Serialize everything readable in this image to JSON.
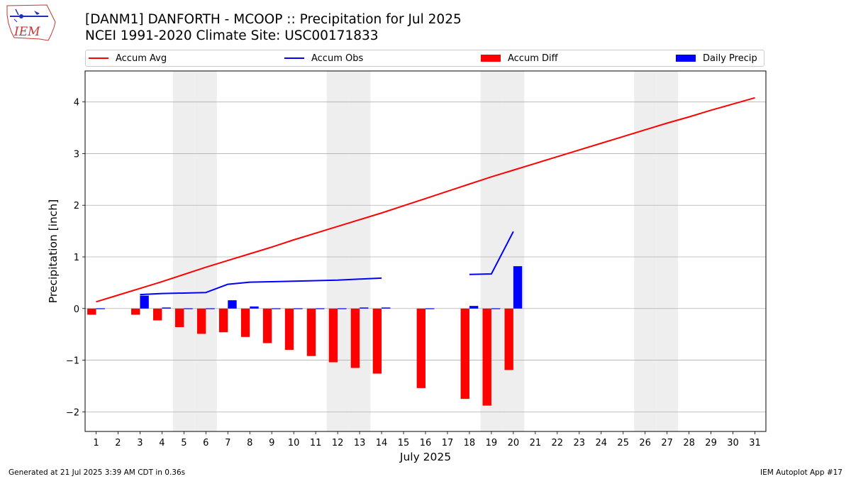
{
  "title_line1": "[DANM1] DANFORTH - MCOOP :: Precipitation for Jul 2025",
  "title_line2": "NCEI 1991-2020 Climate Site: USC00171833",
  "logo_text": "IEM",
  "footer_left": "Generated at 21 Jul 2025 3:39 AM CDT in 0.36s",
  "footer_right": "IEM Autoplot App #17",
  "colors": {
    "avg": "#ff0000",
    "obs": "#0000ff",
    "diff": "#ff0000",
    "daily": "#0000ff",
    "weekend": "#eeeeee",
    "grid": "#b0b0b0"
  },
  "legend": [
    {
      "label": "Accum Avg",
      "kind": "line",
      "color": "#ff0000"
    },
    {
      "label": "Accum Obs",
      "kind": "line",
      "color": "#0000ff"
    },
    {
      "label": "Accum Diff",
      "kind": "box",
      "color": "#ff0000"
    },
    {
      "label": "Daily Precip",
      "kind": "box",
      "color": "#0000ff"
    }
  ],
  "chart_data": {
    "type": "bar",
    "title": "[DANM1] DANFORTH - MCOOP :: Precipitation for Jul 2025",
    "xlabel": "July 2025",
    "ylabel": "Precipitation [inch]",
    "xlim": [
      0.5,
      31.5
    ],
    "ylim": [
      -2.38,
      4.6
    ],
    "yticks": [
      -2,
      -1,
      0,
      1,
      2,
      3,
      4
    ],
    "ytick_labels": [
      "−2",
      "−1",
      "0",
      "1",
      "2",
      "3",
      "4"
    ],
    "categories": [
      "1",
      "2",
      "3",
      "4",
      "5",
      "6",
      "7",
      "8",
      "9",
      "10",
      "11",
      "12",
      "13",
      "14",
      "15",
      "16",
      "17",
      "18",
      "19",
      "20",
      "21",
      "22",
      "23",
      "24",
      "25",
      "26",
      "27",
      "28",
      "29",
      "30",
      "31"
    ],
    "weekend_days": [
      5,
      6,
      12,
      13,
      19,
      20,
      26,
      27
    ],
    "grid": true,
    "series": [
      {
        "name": "Accum Avg",
        "kind": "line",
        "x": [
          1,
          2,
          3,
          4,
          5,
          6,
          7,
          8,
          9,
          10,
          11,
          12,
          13,
          14,
          15,
          16,
          17,
          18,
          19,
          20,
          21,
          22,
          23,
          24,
          25,
          26,
          27,
          28,
          29,
          30,
          31
        ],
        "values": [
          0.13,
          0.26,
          0.39,
          0.52,
          0.66,
          0.8,
          0.93,
          1.06,
          1.19,
          1.33,
          1.46,
          1.59,
          1.72,
          1.85,
          1.99,
          2.13,
          2.27,
          2.41,
          2.55,
          2.68,
          2.81,
          2.94,
          3.07,
          3.2,
          3.33,
          3.46,
          3.59,
          3.71,
          3.84,
          3.96,
          4.08
        ]
      },
      {
        "name": "Accum Obs",
        "kind": "line",
        "segments": [
          {
            "x": [
              3,
              4,
              5,
              6,
              7,
              8,
              9,
              10,
              11,
              12,
              13,
              14
            ],
            "values": [
              0.27,
              0.29,
              0.3,
              0.31,
              0.47,
              0.51,
              0.52,
              0.53,
              0.54,
              0.55,
              0.57,
              0.59
            ]
          },
          {
            "x": [
              18,
              19,
              20
            ],
            "values": [
              0.66,
              0.67,
              1.49
            ]
          }
        ]
      },
      {
        "name": "Accum Diff",
        "kind": "bar",
        "offset": "left",
        "x": [
          1,
          3,
          4,
          5,
          6,
          7,
          8,
          9,
          10,
          11,
          12,
          13,
          14,
          16,
          18,
          19,
          20
        ],
        "values": [
          -0.12,
          -0.12,
          -0.23,
          -0.36,
          -0.49,
          -0.46,
          -0.55,
          -0.67,
          -0.8,
          -0.92,
          -1.04,
          -1.15,
          -1.26,
          -1.54,
          -1.75,
          -1.88,
          -1.19
        ]
      },
      {
        "name": "Daily Precip",
        "kind": "bar",
        "offset": "right",
        "x": [
          1,
          3,
          4,
          5,
          6,
          7,
          8,
          9,
          10,
          11,
          12,
          13,
          14,
          16,
          18,
          19,
          20
        ],
        "values": [
          0.005,
          0.25,
          0.02,
          0.005,
          0.005,
          0.16,
          0.04,
          0.005,
          0.005,
          0.005,
          0.005,
          0.02,
          0.02,
          0.005,
          0.05,
          0.005,
          0.82
        ]
      }
    ]
  }
}
